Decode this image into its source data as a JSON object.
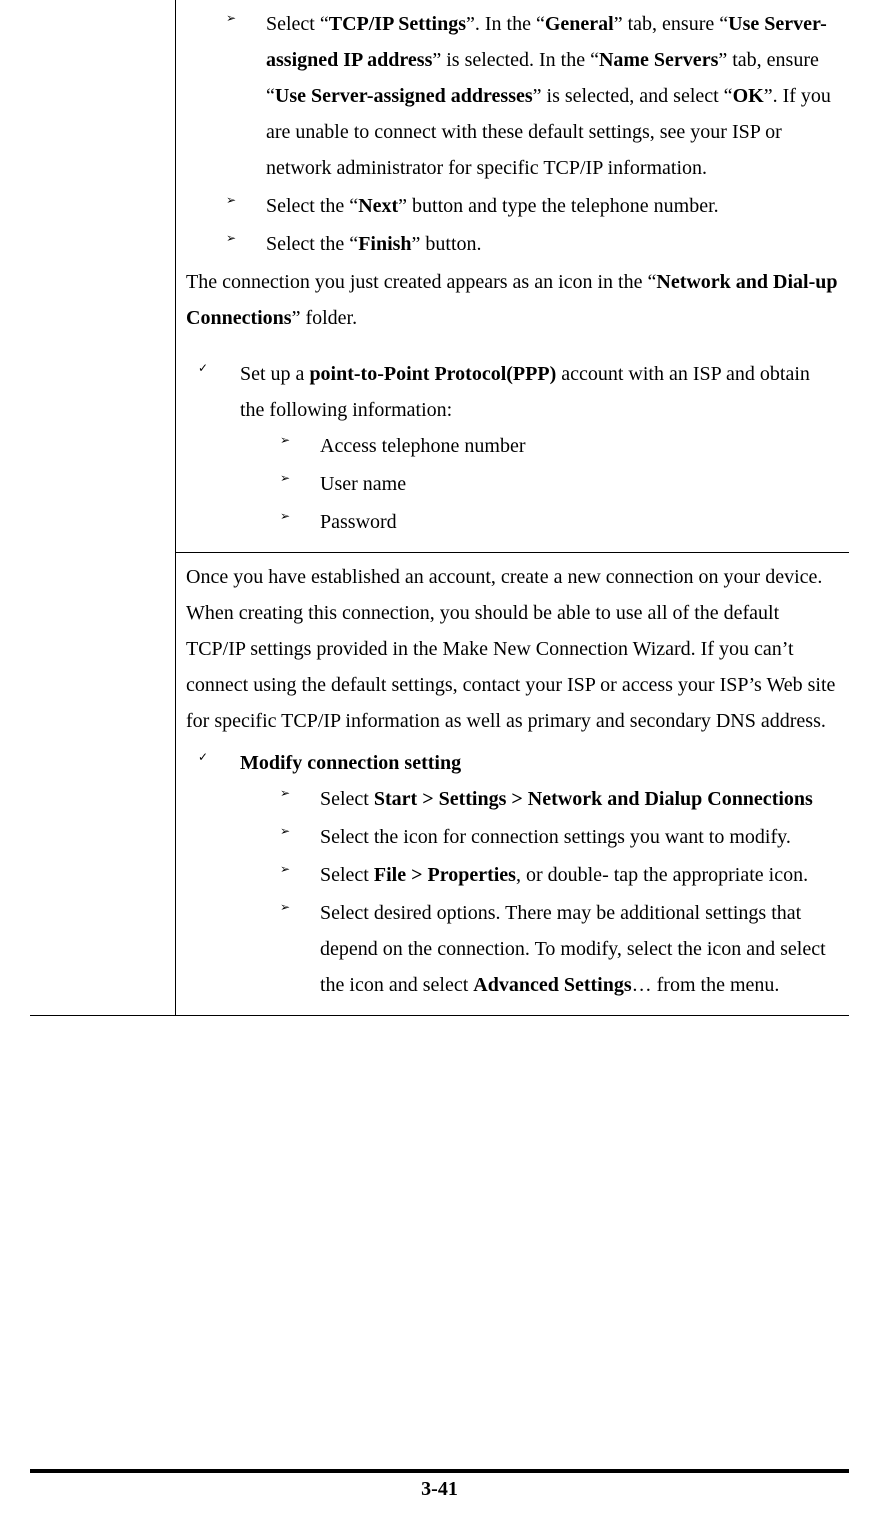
{
  "page_number": "3-41",
  "cell1": {
    "bullets_a": [
      {
        "segments": [
          {
            "t": "Select “"
          },
          {
            "t": "TCP/IP Settings",
            "b": true
          },
          {
            "t": "”. In the “"
          },
          {
            "t": "General",
            "b": true
          },
          {
            "t": "” tab, ensure “"
          },
          {
            "t": "Use Server-assigned IP address",
            "b": true
          },
          {
            "t": "” is selected. In the “"
          },
          {
            "t": "Name Servers",
            "b": true
          },
          {
            "t": "” tab, ensure “"
          },
          {
            "t": "Use Server-assigned addresses",
            "b": true
          },
          {
            "t": "” is selected, and select “"
          },
          {
            "t": "OK",
            "b": true
          },
          {
            "t": "”. If you are unable to connect with these default settings, see your ISP or network administrator for specific TCP/IP information."
          }
        ]
      },
      {
        "segments": [
          {
            "t": "Select the “"
          },
          {
            "t": "Next",
            "b": true
          },
          {
            "t": "” button and type the telephone number."
          }
        ]
      },
      {
        "segments": [
          {
            "t": "Select the “"
          },
          {
            "t": "Finish",
            "b": true
          },
          {
            "t": "” button."
          }
        ]
      }
    ],
    "para1_segments": [
      {
        "t": "The connection you just created appears as an icon in the “"
      },
      {
        "t": "Network and Dial-up Connections",
        "b": true
      },
      {
        "t": "” folder."
      }
    ],
    "check1_segments": [
      {
        "t": "Set up a "
      },
      {
        "t": "point-to-Point Protocol(PPP)",
        "b": true
      },
      {
        "t": " account with an ISP and obtain the following information:"
      }
    ],
    "nested1": [
      "Access telephone number",
      "User name",
      "Password"
    ]
  },
  "cell2": {
    "para2": "Once you have established an account, create a new connection on your device. When creating this connection, you should be able to use all of the default TCP/IP settings provided in the Make New Connection Wizard. If you can’t connect using the default settings, contact your ISP or access your ISP’s Web site for specific TCP/IP information as well as primary and secondary DNS address.",
    "check2": "Modify connection setting",
    "bullets_b": [
      {
        "segments": [
          {
            "t": "Select "
          },
          {
            "t": "Start > Settings > Network and Dialup Connections",
            "b": true
          }
        ]
      },
      {
        "segments": [
          {
            "t": "Select the icon for connection settings you want to modify."
          }
        ]
      },
      {
        "segments": [
          {
            "t": "Select "
          },
          {
            "t": "File > Properties",
            "b": true
          },
          {
            "t": ", or double- tap the appropriate icon."
          }
        ]
      },
      {
        "segments": [
          {
            "t": "Select desired options. There may be additional settings that depend on the connection. To modify, select the icon and select the icon and select "
          },
          {
            "t": "Advanced Settings",
            "b": true
          },
          {
            "t": "… from the menu."
          }
        ]
      }
    ]
  }
}
